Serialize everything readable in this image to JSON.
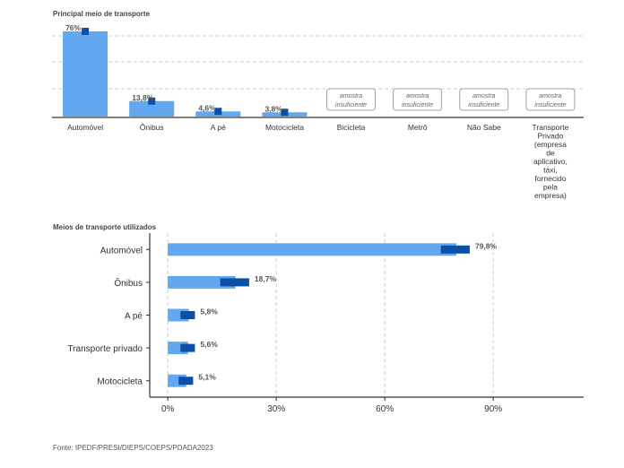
{
  "source": "Fonte: IPEDF/PRESI/DIEPS/COEPS/PDADA2023",
  "colors": {
    "bar": "#62a8f0",
    "marker": "#0a4fa8",
    "axis": "#333333",
    "grid": "#cccccc",
    "text": "#333333"
  },
  "chart_data": [
    {
      "type": "bar",
      "title": "Principal meio de transporte",
      "categories": [
        "Automóvel",
        "Ônibus",
        "A pé",
        "Motocicleta",
        "Bicicleta",
        "Metrô",
        "Não Sabe",
        "Transporte Privado (empresa de aplicativo, táxi, fornecido pela empresa)"
      ],
      "category_lines": [
        [
          "Automóvel"
        ],
        [
          "Ônibus"
        ],
        [
          "A pé"
        ],
        [
          "Motocicleta"
        ],
        [
          "Bicicleta"
        ],
        [
          "Metrô"
        ],
        [
          "Não Sabe"
        ],
        [
          "Transporte",
          "Privado",
          "(empresa",
          "de",
          "aplicativo,",
          "táxi,",
          "fornecido",
          "pela",
          "empresa)"
        ]
      ],
      "values": [
        76,
        13.8,
        4.6,
        3.8,
        null,
        null,
        null,
        null
      ],
      "value_labels": [
        "76%",
        "13,8%",
        "4,6%",
        "3,8%",
        "",
        "",
        "",
        ""
      ],
      "insufficient_lines": [
        "amostra",
        "insuficiente"
      ],
      "ylim": [
        0,
        80
      ],
      "grid": true
    },
    {
      "type": "bar",
      "orientation": "horizontal",
      "title": "Meios de transporte utilizados",
      "categories": [
        "Automóvel",
        "Ônibus",
        "A pé",
        "Transporte privado",
        "Motocicleta"
      ],
      "values": [
        79.8,
        18.7,
        5.8,
        5.6,
        5.1
      ],
      "value_labels": [
        "79,8%",
        "18,7%",
        "5,8%",
        "5,6%",
        "5,1%"
      ],
      "intervals": [
        [
          75.5,
          83.5
        ],
        [
          14.5,
          22.5
        ],
        [
          3.5,
          7.5
        ],
        [
          3.5,
          7.5
        ],
        [
          3,
          7
        ]
      ],
      "x_ticks": [
        0,
        30,
        60,
        90
      ],
      "x_tick_labels": [
        "0%",
        "30%",
        "60%",
        "90%"
      ],
      "xlim": [
        -5,
        115
      ],
      "grid": true
    }
  ]
}
